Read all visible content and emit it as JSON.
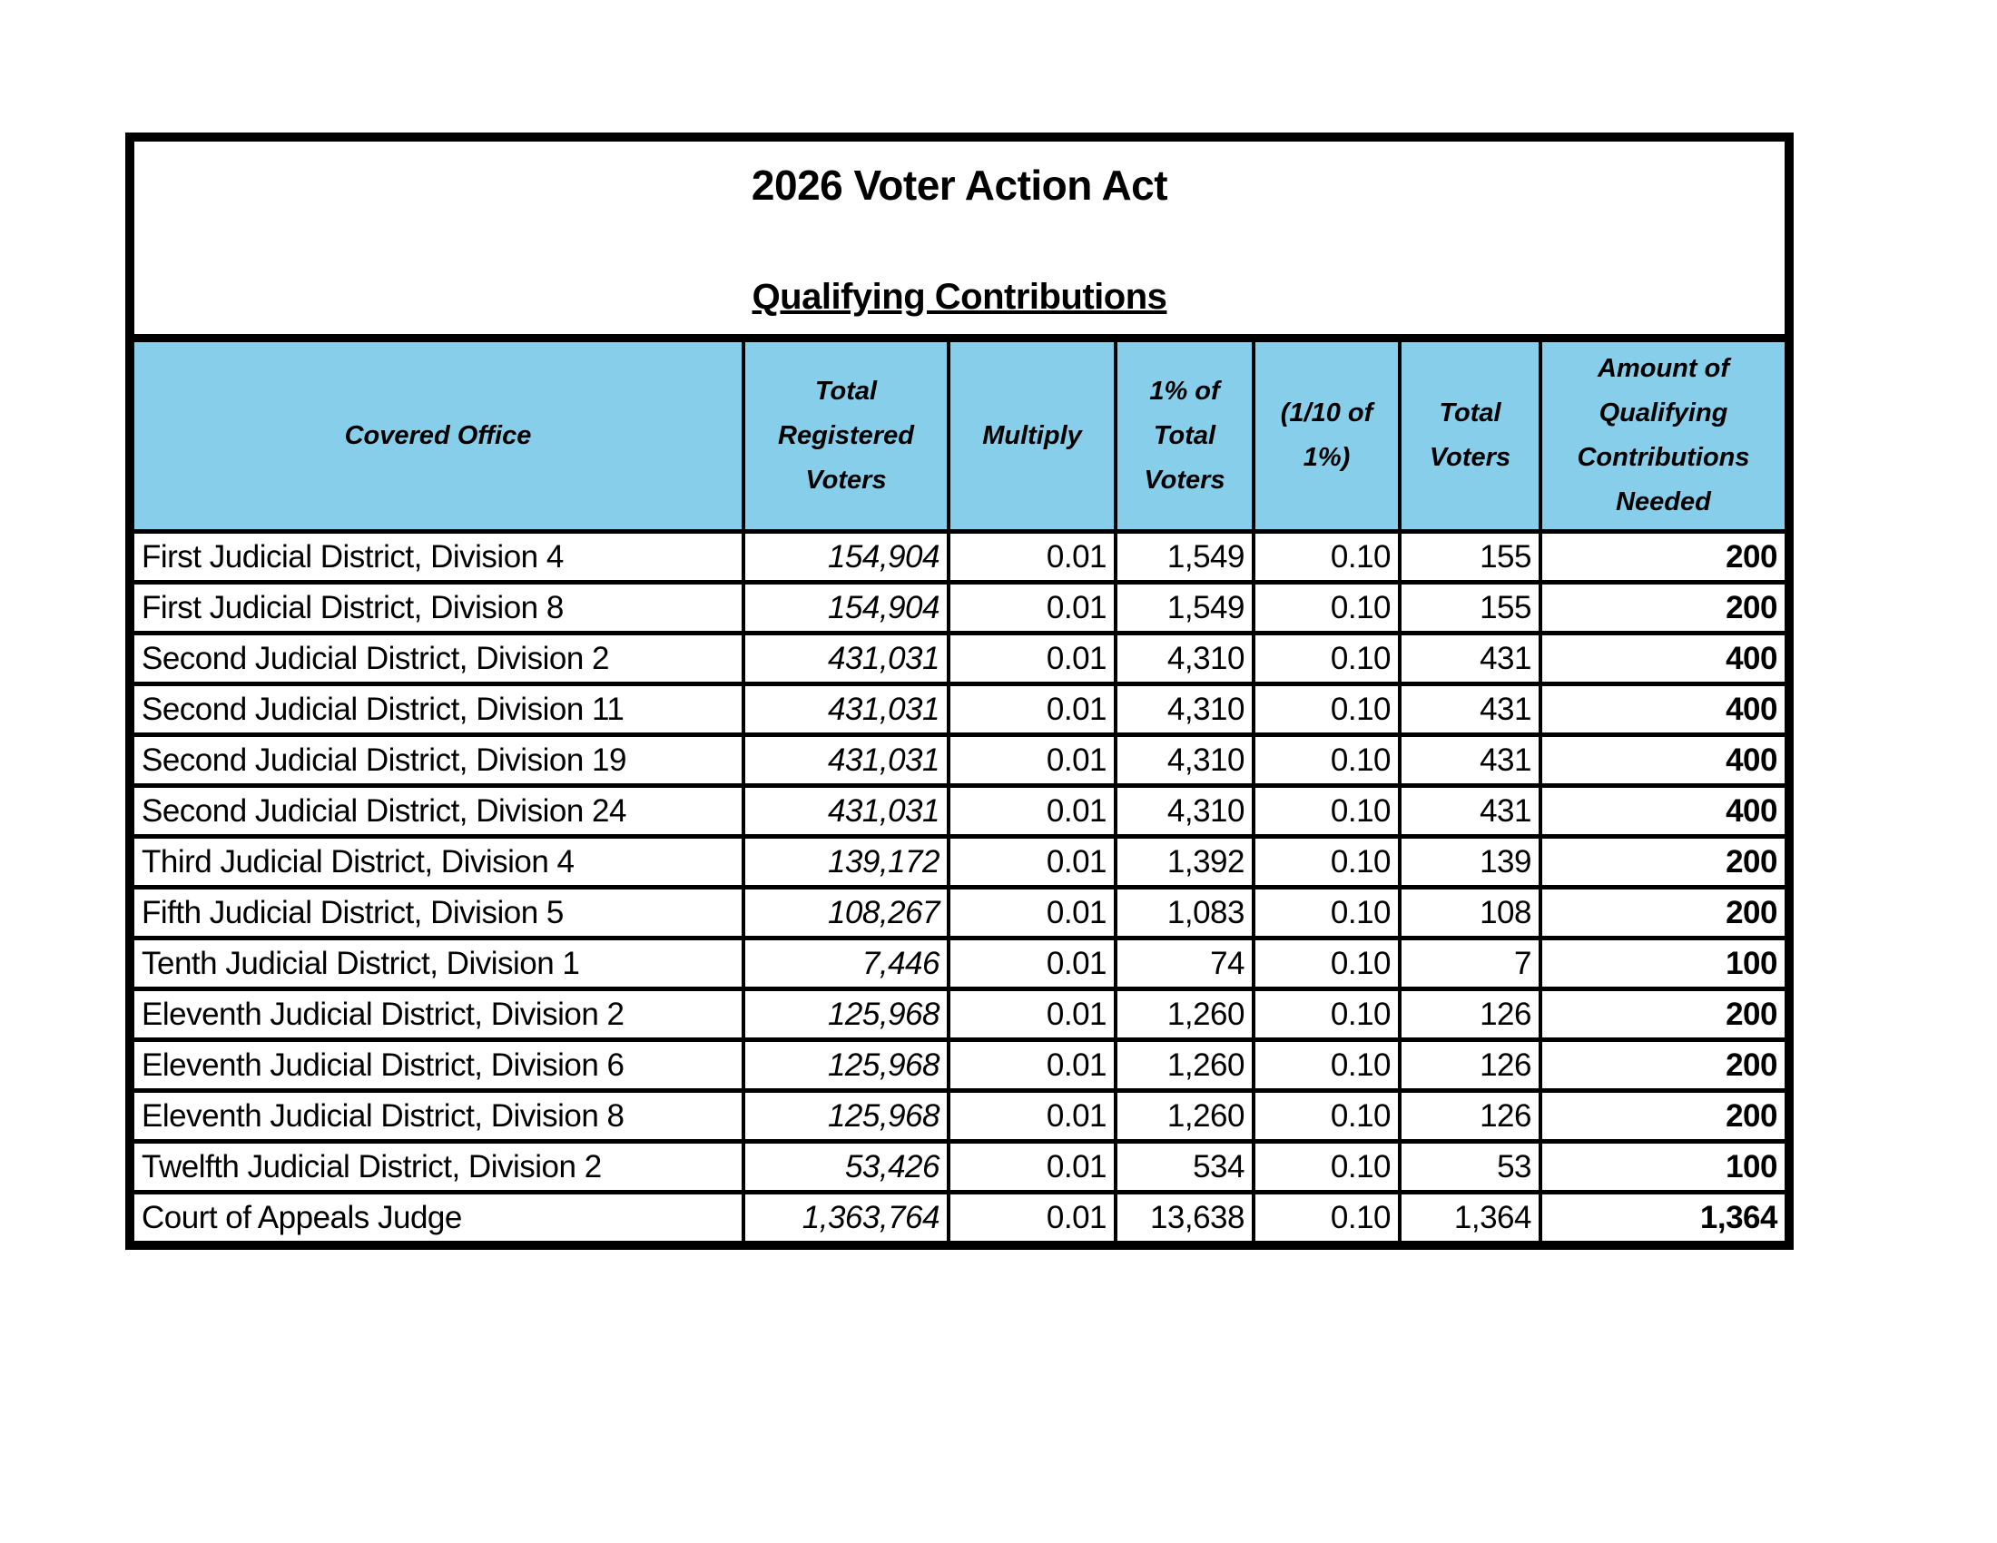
{
  "document": {
    "title": "2026 Voter Action Act",
    "subtitle": "Qualifying Contributions"
  },
  "table": {
    "header_bg": "#87CEEB",
    "border_color": "#000000",
    "columns": [
      {
        "key": "covered-office",
        "label": "Covered Office"
      },
      {
        "key": "total-registered-voters",
        "label": "Total Registered Voters"
      },
      {
        "key": "multiply",
        "label": "Multiply"
      },
      {
        "key": "one-percent-of-total-voters",
        "label": "1% of Total Voters"
      },
      {
        "key": "one-tenth-of-one-percent",
        "label": "(1/10 of 1%)"
      },
      {
        "key": "total-voters",
        "label": "Total Voters"
      },
      {
        "key": "amount-of-qualifying-contributions-needed",
        "label": "Amount of Qualifying Contributions Needed"
      }
    ],
    "rows": [
      [
        "First Judicial District, Division 4",
        "154,904",
        "0.01",
        "1,549",
        "0.10",
        "155",
        "200"
      ],
      [
        "First Judicial District, Division 8",
        "154,904",
        "0.01",
        "1,549",
        "0.10",
        "155",
        "200"
      ],
      [
        "Second Judicial District, Division 2",
        "431,031",
        "0.01",
        "4,310",
        "0.10",
        "431",
        "400"
      ],
      [
        "Second Judicial District, Division 11",
        "431,031",
        "0.01",
        "4,310",
        "0.10",
        "431",
        "400"
      ],
      [
        "Second Judicial District, Division 19",
        "431,031",
        "0.01",
        "4,310",
        "0.10",
        "431",
        "400"
      ],
      [
        "Second Judicial District, Division 24",
        "431,031",
        "0.01",
        "4,310",
        "0.10",
        "431",
        "400"
      ],
      [
        "Third Judicial District, Division 4",
        "139,172",
        "0.01",
        "1,392",
        "0.10",
        "139",
        "200"
      ],
      [
        "Fifth Judicial District, Division 5",
        "108,267",
        "0.01",
        "1,083",
        "0.10",
        "108",
        "200"
      ],
      [
        "Tenth Judicial District, Division 1",
        "7,446",
        "0.01",
        "74",
        "0.10",
        "7",
        "100"
      ],
      [
        "Eleventh Judicial District, Division 2",
        "125,968",
        "0.01",
        "1,260",
        "0.10",
        "126",
        "200"
      ],
      [
        "Eleventh Judicial District, Division 6",
        "125,968",
        "0.01",
        "1,260",
        "0.10",
        "126",
        "200"
      ],
      [
        "Eleventh Judicial District, Division 8",
        "125,968",
        "0.01",
        "1,260",
        "0.10",
        "126",
        "200"
      ],
      [
        "Twelfth Judicial District, Division 2",
        "53,426",
        "0.01",
        "534",
        "0.10",
        "53",
        "100"
      ],
      [
        "Court of Appeals Judge",
        "1,363,764",
        "0.01",
        "13,638",
        "0.10",
        "1,364",
        "1,364"
      ]
    ]
  }
}
